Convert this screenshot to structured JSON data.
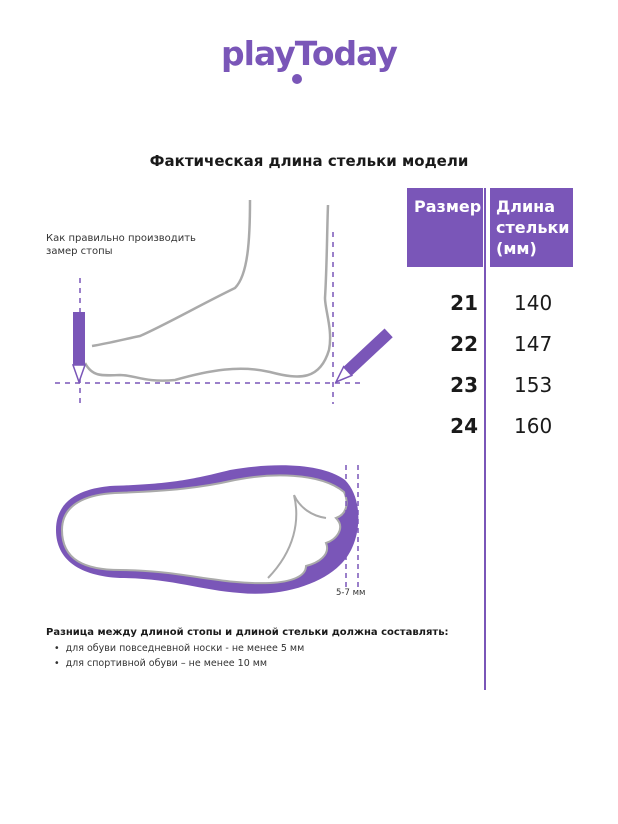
{
  "brand": {
    "logo_text": "playToday",
    "color": "#7a56b8"
  },
  "title": "Фактическая длина стельки модели",
  "measure_hint": "Как правильно производить замер стопы",
  "insole_gap_label": "5-7 мм",
  "table": {
    "headers": {
      "size": "Размер",
      "length": "Длина стельки (мм)"
    },
    "rows": [
      {
        "size": "21",
        "length": "140"
      },
      {
        "size": "22",
        "length": "147"
      },
      {
        "size": "23",
        "length": "153"
      },
      {
        "size": "24",
        "length": "160"
      }
    ]
  },
  "note": {
    "heading": "Разница между длиной стопы и длиной стельки должна составлять:",
    "items": [
      "для обуви повседневной носки -  не менее 5 мм",
      "для спортивной обуви – не менее 10 мм"
    ]
  }
}
